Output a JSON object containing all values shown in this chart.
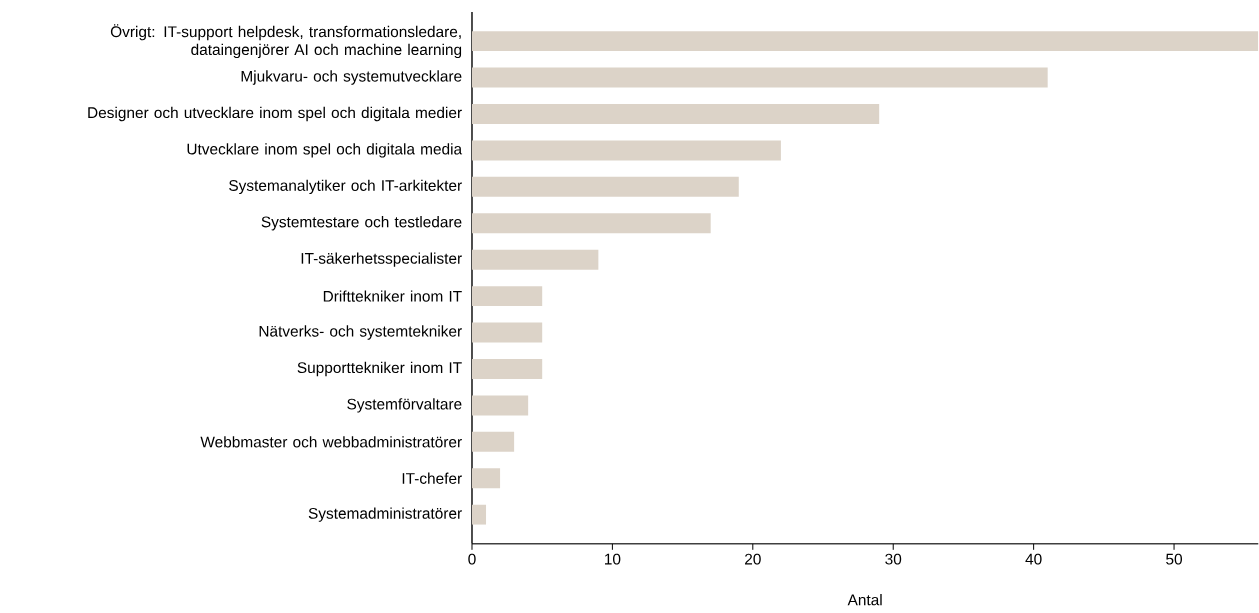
{
  "chart_data": {
    "type": "bar",
    "orientation": "horizontal",
    "xlabel": "Antal",
    "categories": [
      "Övrigt: IT-support helpdesk, transformationsledare, dataingenjörer AI och machine learning",
      "Mjukvaru- och systemutvecklare",
      "Designer och utvecklare inom spel och digitala medier",
      "Utvecklare inom spel och digitala media",
      "Systemanalytiker och IT-arkitekter",
      "Systemtestare och testledare",
      "IT-säkerhetsspecialister",
      "Drifttekniker inom IT",
      "Nätverks- och systemtekniker",
      "Supporttekniker inom IT",
      "Systemförvaltare",
      "Webbmaster och webbadministratörer",
      "IT-chefer",
      "Systemadministratörer"
    ],
    "values": [
      56,
      41,
      29,
      22,
      19,
      17,
      9,
      5,
      5,
      5,
      4,
      3,
      2,
      1
    ],
    "color": "#dcd3c8",
    "xlim": [
      0,
      56
    ],
    "xticks": [
      0,
      10,
      20,
      30,
      40,
      50
    ]
  }
}
